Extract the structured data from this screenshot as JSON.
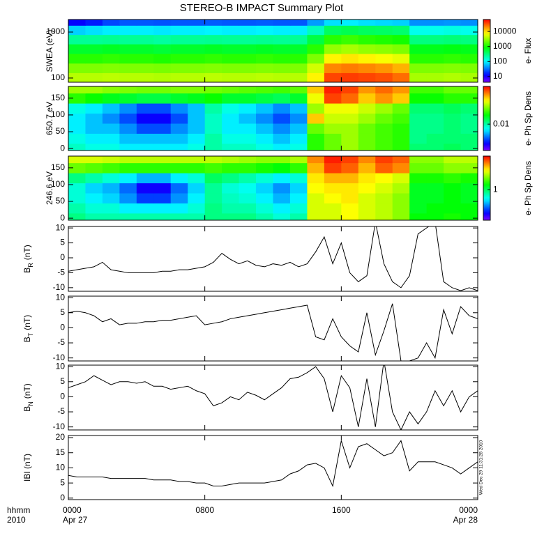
{
  "chart_data": [
    {
      "type": "heatmap",
      "title": "STEREO-B IMPACT Summary Plot",
      "ylabel": "SWEA (eV)",
      "ylog": true,
      "ylim": [
        81,
        1875
      ],
      "yticks": [
        100,
        1000
      ],
      "xlim": [
        0,
        24
      ],
      "x": [
        0,
        1,
        2,
        3,
        4,
        5,
        6,
        7,
        8,
        9,
        10,
        11,
        12,
        13,
        14,
        15,
        16,
        17,
        18,
        19,
        20,
        21,
        22,
        23,
        24
      ],
      "y": [
        81,
        130,
        210,
        340,
        550,
        880,
        1400,
        1875
      ],
      "colormap": "rainbow",
      "clabel": "e- Flux",
      "clog": true,
      "clim": [
        4.2,
        62000
      ],
      "cticks": [
        10,
        100,
        1000,
        10000
      ],
      "values": [
        [
          4000,
          4000,
          4200,
          4000,
          4000,
          3800,
          4000,
          4000,
          4200,
          4000,
          4000,
          4200,
          4000,
          4000,
          8000,
          35000,
          38000,
          35000,
          32000,
          25000,
          3500,
          3500,
          3800,
          3500
        ],
        [
          2500,
          2500,
          2600,
          2500,
          2500,
          2400,
          2500,
          2500,
          2600,
          2500,
          2500,
          2600,
          2500,
          2500,
          5000,
          20000,
          22000,
          20000,
          18000,
          14000,
          2500,
          2500,
          2600,
          2500
        ],
        [
          1200,
          1200,
          1300,
          1200,
          1200,
          1100,
          1200,
          1200,
          1300,
          1200,
          1200,
          1300,
          1200,
          1200,
          2500,
          8000,
          9000,
          8000,
          7000,
          6000,
          1200,
          1200,
          1300,
          1200
        ],
        [
          600,
          600,
          650,
          600,
          600,
          550,
          600,
          600,
          650,
          600,
          600,
          650,
          600,
          600,
          1200,
          3000,
          3500,
          3000,
          2800,
          2500,
          700,
          700,
          750,
          700
        ],
        [
          250,
          250,
          260,
          250,
          250,
          230,
          250,
          250,
          260,
          250,
          250,
          260,
          250,
          250,
          500,
          1200,
          1400,
          1200,
          1100,
          1000,
          300,
          300,
          320,
          300
        ],
        [
          70,
          80,
          90,
          90,
          90,
          85,
          90,
          90,
          95,
          90,
          90,
          95,
          90,
          90,
          180,
          400,
          450,
          400,
          380,
          350,
          120,
          120,
          130,
          120
        ],
        [
          12,
          15,
          22,
          25,
          25,
          24,
          25,
          25,
          26,
          25,
          25,
          26,
          25,
          25,
          45,
          80,
          90,
          80,
          75,
          70,
          40,
          40,
          42,
          40
        ]
      ]
    },
    {
      "type": "heatmap",
      "ylabel": "650.7 eV",
      "ylim": [
        -6,
        185
      ],
      "yticks": [
        0,
        50,
        100,
        150
      ],
      "xlim": [
        0,
        24
      ],
      "x": [
        0,
        1,
        2,
        3,
        4,
        5,
        6,
        7,
        8,
        9,
        10,
        11,
        12,
        13,
        14,
        15,
        16,
        17,
        18,
        19,
        20,
        21,
        22,
        23,
        24
      ],
      "y": [
        -15,
        15,
        45,
        75,
        105,
        135,
        165,
        195
      ],
      "colormap": "rainbow",
      "clabel": "e- Ph Sp Dens",
      "clog": true,
      "clim": [
        0.002,
        0.1
      ],
      "cticks": [
        0.01
      ],
      "values": [
        [
          0.009,
          0.008,
          0.008,
          0.007,
          0.007,
          0.007,
          0.007,
          0.008,
          0.01,
          0.009,
          0.009,
          0.008,
          0.007,
          0.008,
          0.02,
          0.025,
          0.03,
          0.025,
          0.022,
          0.02,
          0.012,
          0.012,
          0.013,
          0.012
        ],
        [
          0.008,
          0.007,
          0.007,
          0.006,
          0.006,
          0.006,
          0.006,
          0.007,
          0.01,
          0.008,
          0.008,
          0.007,
          0.006,
          0.007,
          0.02,
          0.025,
          0.03,
          0.025,
          0.022,
          0.02,
          0.011,
          0.012,
          0.012,
          0.012
        ],
        [
          0.007,
          0.006,
          0.006,
          0.005,
          0.004,
          0.004,
          0.005,
          0.006,
          0.009,
          0.007,
          0.007,
          0.006,
          0.005,
          0.006,
          0.025,
          0.03,
          0.03,
          0.025,
          0.022,
          0.02,
          0.011,
          0.011,
          0.012,
          0.011
        ],
        [
          0.007,
          0.006,
          0.005,
          0.004,
          0.003,
          0.003,
          0.004,
          0.006,
          0.009,
          0.007,
          0.006,
          0.005,
          0.004,
          0.005,
          0.05,
          0.035,
          0.035,
          0.03,
          0.025,
          0.022,
          0.011,
          0.011,
          0.012,
          0.011
        ],
        [
          0.008,
          0.007,
          0.006,
          0.005,
          0.004,
          0.004,
          0.005,
          0.006,
          0.01,
          0.008,
          0.007,
          0.006,
          0.005,
          0.006,
          0.03,
          0.04,
          0.04,
          0.035,
          0.03,
          0.025,
          0.012,
          0.012,
          0.013,
          0.012
        ],
        [
          0.02,
          0.018,
          0.016,
          0.015,
          0.014,
          0.014,
          0.015,
          0.016,
          0.018,
          0.015,
          0.015,
          0.014,
          0.013,
          0.015,
          0.04,
          0.08,
          0.07,
          0.05,
          0.06,
          0.05,
          0.018,
          0.018,
          0.02,
          0.02
        ],
        [
          0.03,
          0.03,
          0.028,
          0.027,
          0.026,
          0.026,
          0.027,
          0.027,
          0.026,
          0.025,
          0.024,
          0.023,
          0.022,
          0.024,
          0.05,
          0.09,
          0.08,
          0.06,
          0.07,
          0.06,
          0.022,
          0.022,
          0.025,
          0.025
        ]
      ]
    },
    {
      "type": "heatmap",
      "ylabel": "246.6 eV",
      "ylim": [
        -6,
        185
      ],
      "yticks": [
        0,
        50,
        100,
        150
      ],
      "xlim": [
        0,
        24
      ],
      "x": [
        0,
        1,
        2,
        3,
        4,
        5,
        6,
        7,
        8,
        9,
        10,
        11,
        12,
        13,
        14,
        15,
        16,
        17,
        18,
        19,
        20,
        21,
        22,
        23,
        24
      ],
      "y": [
        -15,
        15,
        45,
        75,
        105,
        135,
        165,
        195
      ],
      "colormap": "rainbow",
      "clabel": "e- Ph Sp Dens",
      "clog": true,
      "clim": [
        0.2,
        6
      ],
      "cticks": [
        1
      ],
      "values": [
        [
          0.9,
          0.8,
          0.8,
          0.8,
          0.8,
          0.8,
          0.8,
          0.8,
          0.9,
          0.9,
          0.9,
          0.8,
          0.7,
          0.8,
          2.5,
          2.5,
          2.8,
          2.5,
          2.3,
          2,
          1.3,
          1.3,
          1.4,
          1.3
        ],
        [
          0.8,
          0.7,
          0.7,
          0.6,
          0.6,
          0.6,
          0.6,
          0.7,
          0.9,
          0.8,
          0.8,
          0.7,
          0.6,
          0.7,
          2.5,
          2.5,
          2.8,
          2.5,
          2.3,
          2,
          1.2,
          1.3,
          1.3,
          1.3
        ],
        [
          0.7,
          0.6,
          0.55,
          0.45,
          0.35,
          0.35,
          0.45,
          0.6,
          0.85,
          0.75,
          0.7,
          0.6,
          0.5,
          0.6,
          2.5,
          2.8,
          3,
          2.5,
          2.3,
          2,
          1.2,
          1.2,
          1.3,
          1.2
        ],
        [
          0.7,
          0.55,
          0.5,
          0.4,
          0.28,
          0.28,
          0.4,
          0.55,
          0.85,
          0.7,
          0.65,
          0.55,
          0.45,
          0.55,
          2.8,
          3,
          3,
          2.8,
          2.5,
          2.2,
          1.2,
          1.2,
          1.3,
          1.2
        ],
        [
          0.9,
          0.8,
          0.7,
          0.6,
          0.5,
          0.5,
          0.6,
          0.7,
          1,
          0.9,
          0.8,
          0.7,
          0.6,
          0.7,
          3,
          3.5,
          3.5,
          3,
          2.8,
          2.5,
          1.4,
          1.4,
          1.5,
          1.4
        ],
        [
          1.8,
          1.7,
          1.6,
          1.5,
          1.5,
          1.5,
          1.5,
          1.5,
          1.6,
          1.5,
          1.5,
          1.4,
          1.3,
          1.5,
          3.5,
          5,
          4.5,
          3.5,
          4.5,
          4,
          1.8,
          1.8,
          2,
          2
        ],
        [
          2.5,
          2.5,
          2.4,
          2.3,
          2.3,
          2.3,
          2.3,
          2.3,
          2.3,
          2.2,
          2.1,
          2,
          2,
          2.2,
          4,
          5.5,
          5,
          4,
          5,
          4.5,
          2,
          2,
          2.3,
          2.3
        ]
      ]
    },
    {
      "type": "line",
      "ylabel": "B",
      "ylabel_sub": "R",
      "ylabel_unit": "(nT)",
      "color": "#000000",
      "ylim": [
        -11.2,
        10.5
      ],
      "yticks": [
        -10,
        -5,
        0,
        5,
        10
      ],
      "xlim": [
        0,
        24
      ],
      "x": [
        0,
        0.5,
        1,
        1.5,
        2,
        2.5,
        3,
        3.5,
        4,
        4.5,
        5,
        5.5,
        6,
        6.5,
        7,
        7.5,
        8,
        8.5,
        9,
        9.5,
        10,
        10.5,
        11,
        11.5,
        12,
        12.5,
        13,
        13.5,
        14,
        14.5,
        15,
        15.5,
        16,
        16.5,
        17,
        17.5,
        18,
        18.5,
        19,
        19.5,
        20,
        20.5,
        21,
        21.5,
        22,
        22.5,
        23,
        23.5,
        24
      ],
      "values": [
        -4.5,
        -4,
        -3.5,
        -3,
        -1.5,
        -4,
        -4.5,
        -5,
        -5,
        -5,
        -5,
        -4.5,
        -4.5,
        -4,
        -4,
        -3.5,
        -3,
        -1.5,
        1.5,
        -0.5,
        -2,
        -1,
        -2.5,
        -3,
        -2,
        -2.5,
        -1.5,
        -3,
        -2,
        2,
        7,
        -2,
        5,
        -5,
        -8,
        -6,
        12,
        -2,
        -8,
        -10,
        -6,
        8,
        10,
        12,
        -8,
        -10,
        -11,
        -10,
        -11
      ]
    },
    {
      "type": "line",
      "ylabel": "B",
      "ylabel_sub": "T",
      "ylabel_unit": "(nT)",
      "color": "#000000",
      "ylim": [
        -11,
        10.5
      ],
      "yticks": [
        -10,
        -5,
        0,
        5,
        10
      ],
      "xlim": [
        0,
        24
      ],
      "x": [
        0,
        0.5,
        1,
        1.5,
        2,
        2.5,
        3,
        3.5,
        4,
        4.5,
        5,
        5.5,
        6,
        6.5,
        7,
        7.5,
        8,
        8.5,
        9,
        9.5,
        10,
        10.5,
        11,
        11.5,
        12,
        12.5,
        13,
        13.5,
        14,
        14.5,
        15,
        15.5,
        16,
        16.5,
        17,
        17.5,
        18,
        18.5,
        19,
        19.5,
        20,
        20.5,
        21,
        21.5,
        22,
        22.5,
        23,
        23.5,
        24
      ],
      "values": [
        5,
        5.5,
        5,
        4,
        2,
        3,
        1,
        1.5,
        1.5,
        2,
        2,
        2.5,
        2.5,
        3,
        3.5,
        4,
        1,
        1.5,
        2,
        3,
        3.5,
        4,
        4.5,
        5,
        5.5,
        6,
        6.5,
        7,
        7.5,
        -3,
        -4,
        3,
        -3,
        -6,
        -8,
        5,
        -9,
        -1,
        8,
        -11,
        -11,
        -10,
        -5,
        -10,
        6,
        -2,
        7,
        4,
        3
      ]
    },
    {
      "type": "line",
      "ylabel": "B",
      "ylabel_sub": "N",
      "ylabel_unit": "(nT)",
      "color": "#000000",
      "ylim": [
        -11,
        10.5
      ],
      "yticks": [
        -10,
        -5,
        0,
        5,
        10
      ],
      "xlim": [
        0,
        24
      ],
      "x": [
        0,
        0.5,
        1,
        1.5,
        2,
        2.5,
        3,
        3.5,
        4,
        4.5,
        5,
        5.5,
        6,
        6.5,
        7,
        7.5,
        8,
        8.5,
        9,
        9.5,
        10,
        10.5,
        11,
        11.5,
        12,
        12.5,
        13,
        13.5,
        14,
        14.5,
        15,
        15.5,
        16,
        16.5,
        17,
        17.5,
        18,
        18.5,
        19,
        19.5,
        20,
        20.5,
        21,
        21.5,
        22,
        22.5,
        23,
        23.5,
        24
      ],
      "values": [
        3,
        4,
        5,
        7,
        5.5,
        4,
        5,
        5,
        4.5,
        5,
        3.5,
        3.5,
        2.5,
        3,
        3.5,
        2,
        1,
        -3,
        -2,
        0,
        -1,
        1.5,
        0.5,
        -1,
        1,
        3,
        6,
        6.5,
        8,
        10,
        6,
        -5,
        7,
        3,
        -10,
        6,
        -10,
        12,
        -5,
        -11,
        -5,
        -9,
        -5,
        2,
        -3,
        2,
        -5,
        0,
        2
      ]
    },
    {
      "type": "line",
      "ylabel": "IBI (nT)",
      "color": "#000000",
      "ylim": [
        -0.5,
        20.7
      ],
      "yticks": [
        0,
        5,
        10,
        15,
        20
      ],
      "xlim": [
        0,
        24
      ],
      "x": [
        0,
        0.5,
        1,
        1.5,
        2,
        2.5,
        3,
        3.5,
        4,
        4.5,
        5,
        5.5,
        6,
        6.5,
        7,
        7.5,
        8,
        8.5,
        9,
        9.5,
        10,
        10.5,
        11,
        11.5,
        12,
        12.5,
        13,
        13.5,
        14,
        14.5,
        15,
        15.5,
        16,
        16.5,
        17,
        17.5,
        18,
        18.5,
        19,
        19.5,
        20,
        20.5,
        21,
        21.5,
        22,
        22.5,
        23,
        23.5,
        24
      ],
      "values": [
        7.5,
        7,
        7,
        7,
        7,
        6.5,
        6.5,
        6.5,
        6.5,
        6.5,
        6,
        6,
        6,
        5.5,
        5.5,
        5,
        5,
        4,
        4,
        4.5,
        5,
        5,
        5,
        5,
        5.5,
        6,
        8,
        9,
        11,
        11.5,
        10,
        4,
        19,
        10,
        17,
        18,
        16,
        14,
        15,
        19,
        9,
        12,
        12,
        12,
        11,
        10,
        8,
        10,
        12
      ],
      "xticks": [
        {
          "value": 0,
          "label": "0000"
        },
        {
          "value": 8,
          "label": "0800"
        },
        {
          "value": 16,
          "label": "1600"
        },
        {
          "value": 24,
          "label": "0000"
        }
      ],
      "xdates": [
        {
          "value": 0,
          "label": "Apr 27"
        },
        {
          "value": 24,
          "label": "Apr 28"
        }
      ],
      "xlabel": "hhmm",
      "xlabel2": "2010",
      "timestamp": "Wed Dec 29 11:31:28 2010"
    }
  ]
}
